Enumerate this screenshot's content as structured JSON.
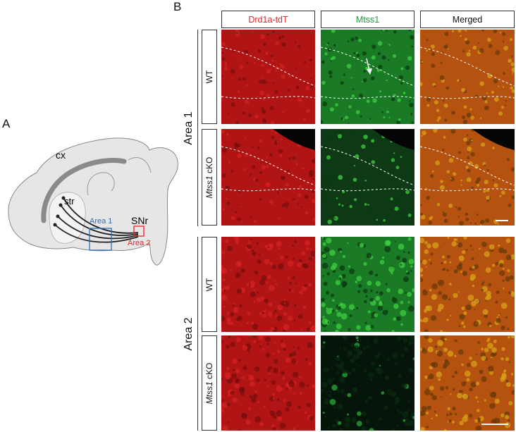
{
  "panel_labels": {
    "a": "A",
    "b": "B"
  },
  "diagram": {
    "cortex_label": "cx",
    "striatum_label": "str",
    "snr_label": "SNr",
    "area1_label": "Area 1",
    "area2_label": "Area 2",
    "area1_color": "#2f6db3",
    "area2_color": "#e8232a"
  },
  "columns": [
    {
      "label": "Drd1a-tdT",
      "color": "#e8232a"
    },
    {
      "label": "Mtss1",
      "color": "#1f9a3c"
    },
    {
      "label": "Merged",
      "color": "#111111"
    }
  ],
  "areas": [
    {
      "label": "Area 1",
      "rows": [
        {
          "genotype": "WT",
          "italic": ""
        },
        {
          "genotype": "cKO",
          "italic": "Mtss1"
        }
      ]
    },
    {
      "label": "Area 2",
      "rows": [
        {
          "genotype": "WT",
          "italic": ""
        },
        {
          "genotype": "cKO",
          "italic": "Mtss1"
        }
      ]
    }
  ],
  "annotations": {
    "asterisk": "*",
    "arrow": "mtss1-arrow"
  }
}
